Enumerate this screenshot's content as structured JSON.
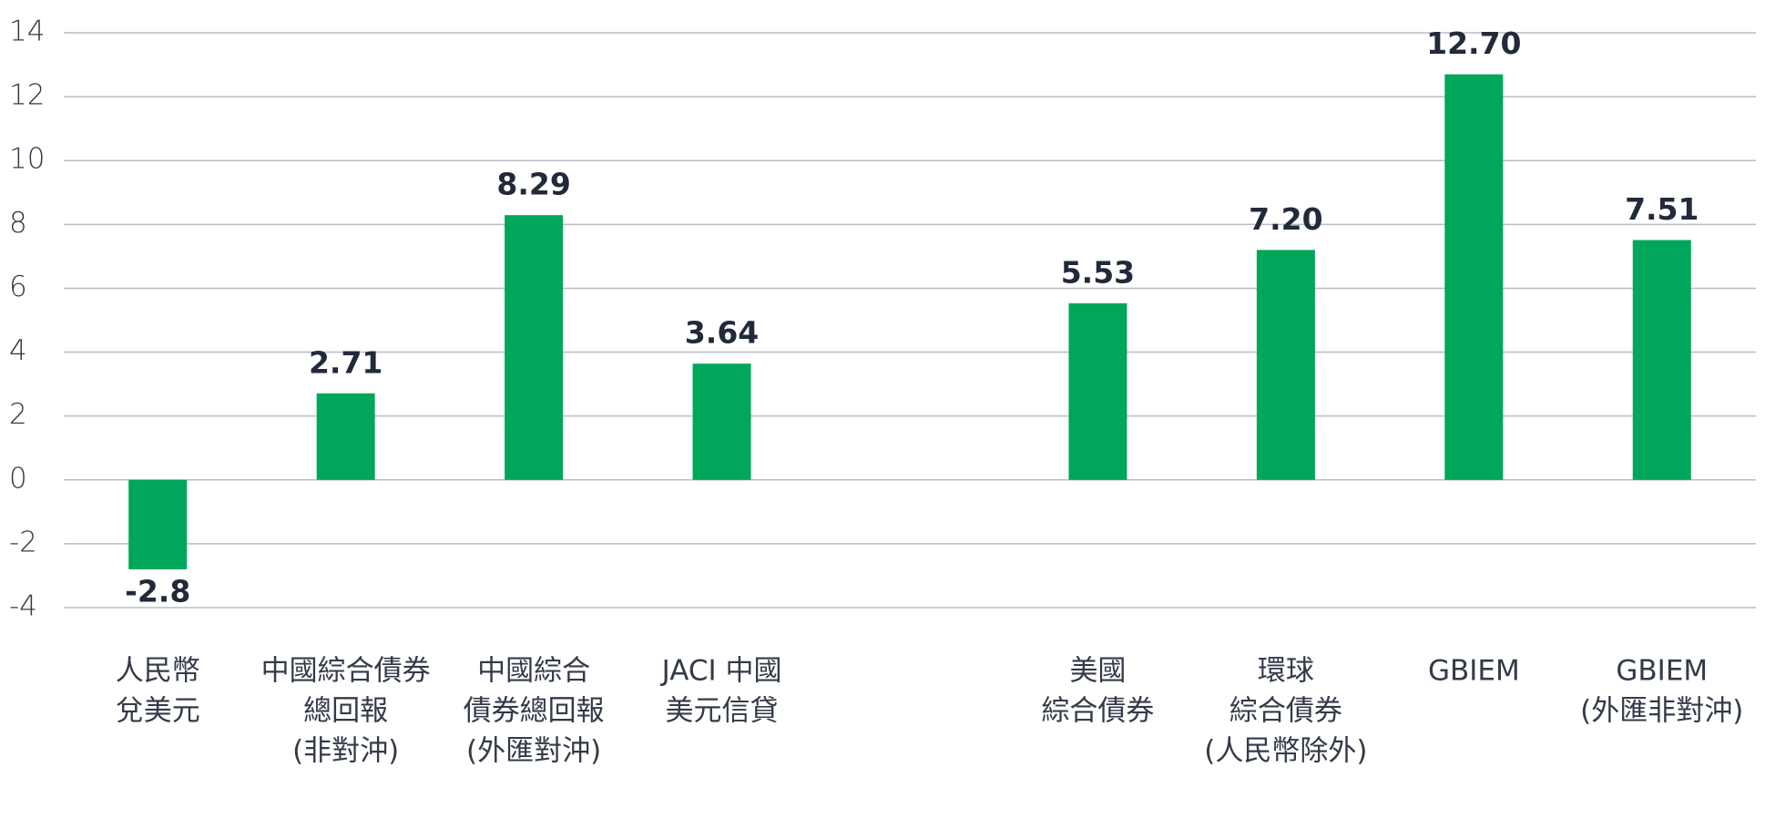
{
  "chart_data": {
    "type": "bar",
    "categories": [
      [
        "人民幣",
        "兌美元"
      ],
      [
        "中國綜合債券",
        "總回報",
        "(非對沖)"
      ],
      [
        "中國綜合",
        "債券總回報",
        "(外匯對沖)"
      ],
      [
        "JACI 中國",
        "美元信貸"
      ],
      null,
      [
        "美國",
        "綜合債券"
      ],
      [
        "環球",
        "綜合債券",
        "(人民幣除外)"
      ],
      [
        "GBIEM"
      ],
      [
        "GBIEM",
        "(外匯非對沖)"
      ]
    ],
    "values": [
      -2.8,
      2.71,
      8.29,
      3.64,
      null,
      5.53,
      7.2,
      12.7,
      7.51
    ],
    "value_labels": [
      "-2.8",
      "2.71",
      "8.29",
      "3.64",
      null,
      "5.53",
      "7.20",
      "12.70",
      "7.51"
    ],
    "color": "#00a65a",
    "ylim": [
      -4,
      14
    ],
    "yticks": [
      -4,
      -2,
      0,
      2,
      4,
      6,
      8,
      10,
      12,
      14
    ],
    "grid": true
  }
}
